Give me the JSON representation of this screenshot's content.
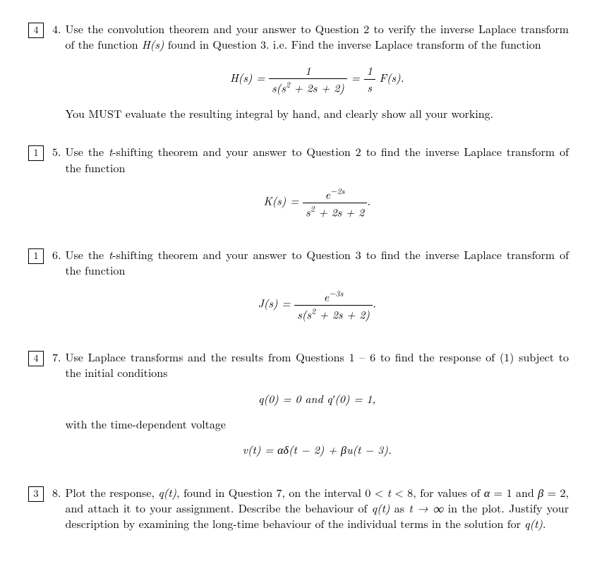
{
  "questions": [
    {
      "mark": "4",
      "num": "4.",
      "text1": "Use the convolution theorem and your answer to Question 2 to verify the inverse Laplace transform of the function ",
      "text1_ital": "H(s)",
      "text1b": " found in Question 3. i.e. Find the inverse Laplace transform of the function",
      "eq_lhs": "H(s) = ",
      "eq_num1": "1",
      "eq_den1a": "s(s",
      "eq_den1_sup": "2",
      "eq_den1b": " + 2s + 2)",
      "eq_mid": " = ",
      "eq_num2": "1",
      "eq_den2": "s",
      "eq_rhs": "F(s).",
      "text2": "You MUST evaluate the resulting integral by hand, and clearly show all your working."
    },
    {
      "mark": "1",
      "num": "5.",
      "text1a": "Use the ",
      "text1_ital": "t",
      "text1b": "-shifting theorem and your answer to Question 2 to find the inverse Laplace transform of the function",
      "eq_lhs": "K(s) = ",
      "eq_num_a": "e",
      "eq_num_sup": "−2s",
      "eq_den_a": "s",
      "eq_den_sup": "2",
      "eq_den_b": " + 2s + 2",
      "eq_end": "."
    },
    {
      "mark": "1",
      "num": "6.",
      "text1a": "Use the ",
      "text1_ital": "t",
      "text1b": "-shifting theorem and your answer to Question 3 to find the inverse Laplace transform of the function",
      "eq_lhs": "J(s) = ",
      "eq_num_a": "e",
      "eq_num_sup": "−3s",
      "eq_den_a": "s(s",
      "eq_den_sup": "2",
      "eq_den_b": " + 2s + 2)",
      "eq_end": "."
    },
    {
      "mark": "4",
      "num": "7.",
      "text1": "Use Laplace transforms and the results from Questions 1 – 6 to find the response of (1) subject to the initial conditions",
      "eq1": "q(0) = 0    and    q′(0) = 1,",
      "text2": "with the time-dependent voltage",
      "eq2": "v(t) = αδ(t − 2) + βu(t − 3)."
    },
    {
      "mark": "3",
      "num": "8.",
      "text1a": "Plot the response, ",
      "text1_i1": "q(t)",
      "text1b": ", found in Question 7, on the interval 0 < ",
      "text1_i2": "t",
      "text1c": " < 8, for values of ",
      "text1_i3": "α",
      "text1d": " = 1 and ",
      "text1_i4": "β",
      "text1e": " = 2, and attach it to your assignment. Describe the behaviour of ",
      "text1_i5": "q(t)",
      "text1f": " as ",
      "text1_i6": "t → ∞",
      "text1g": " in the plot. Justify your description by examining the long-time behaviour of the individual terms in the solution for ",
      "text1_i7": "q(t)",
      "text1h": "."
    }
  ]
}
